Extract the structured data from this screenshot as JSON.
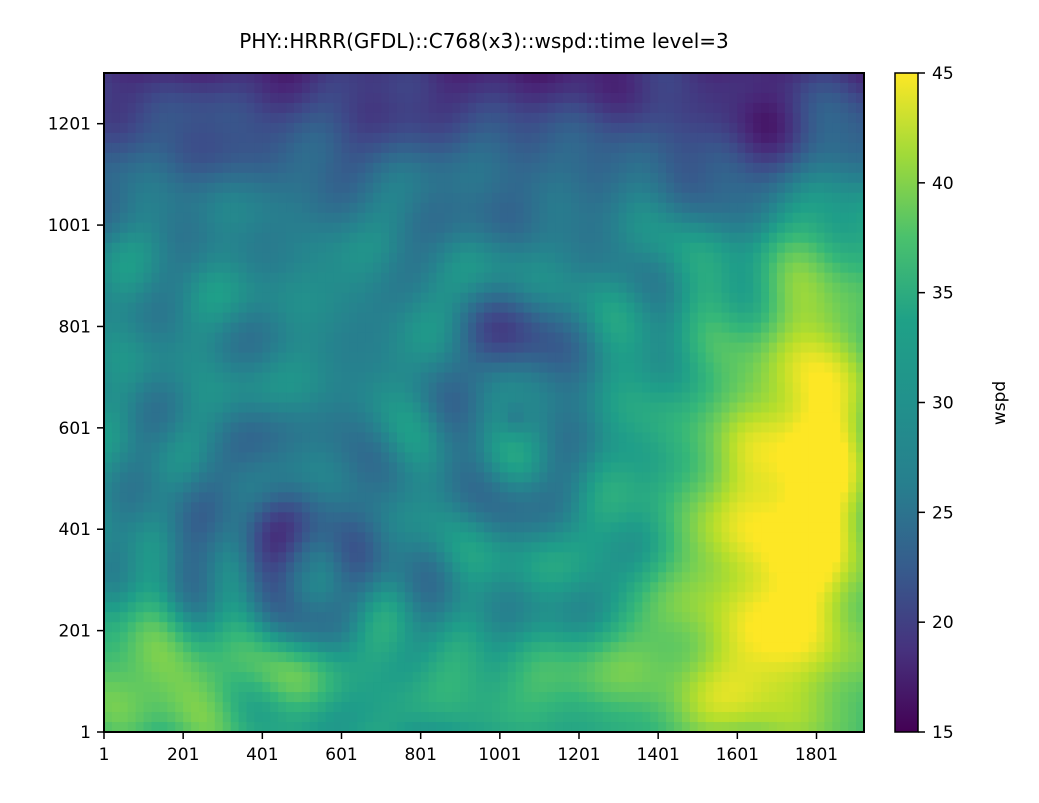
{
  "chart_data": {
    "type": "heatmap",
    "title": "PHY::HRRR(GFDL)::C768(x3)::wspd::time level=3",
    "xlabel": "",
    "ylabel": "",
    "xlim": [
      1,
      1921
    ],
    "ylim": [
      1,
      1301
    ],
    "x_ticks": [
      "1",
      "201",
      "401",
      "601",
      "801",
      "1001",
      "1201",
      "1401",
      "1601",
      "1801"
    ],
    "x_tick_values": [
      1,
      201,
      401,
      601,
      801,
      1001,
      1201,
      1401,
      1601,
      1801
    ],
    "y_ticks": [
      "1",
      "201",
      "401",
      "601",
      "801",
      "1001",
      "1201"
    ],
    "y_tick_values": [
      1,
      201,
      401,
      601,
      801,
      1001,
      1201
    ],
    "colormap": "viridis",
    "colorbar": {
      "label": "wspd",
      "range": [
        15,
        45
      ],
      "ticks": [
        "15",
        "20",
        "25",
        "30",
        "35",
        "40",
        "45"
      ],
      "tick_values": [
        15,
        20,
        25,
        30,
        35,
        40,
        45
      ]
    },
    "grid": false,
    "field_features": [
      {
        "region": "top band",
        "wspd": 18
      },
      {
        "region": "center vortex",
        "wspd": 27
      },
      {
        "region": "lower-left swirl",
        "wspd": 24
      },
      {
        "region": "right / lower-right",
        "wspd": 44
      },
      {
        "region": "bottom-left corner",
        "wspd": 41
      }
    ]
  }
}
